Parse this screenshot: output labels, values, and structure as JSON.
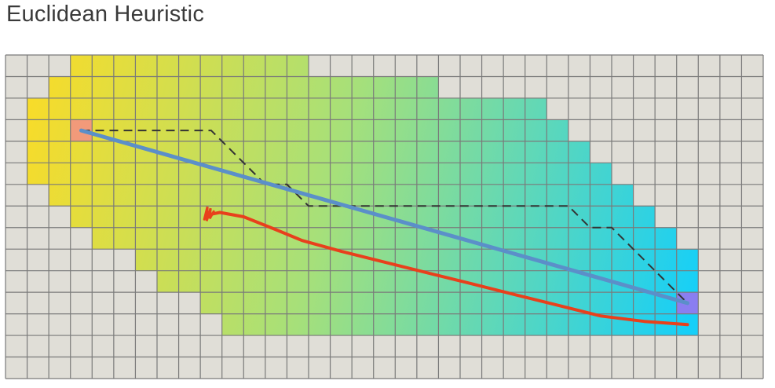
{
  "title": "Euclidean Heuristic",
  "grid": {
    "cols": 35,
    "rows": 15,
    "start": {
      "col": 3,
      "row": 3
    },
    "goal": {
      "col": 31,
      "row": 11
    },
    "explored_rows": [
      {
        "row": 0,
        "from": 3,
        "to": 13
      },
      {
        "row": 1,
        "from": 2,
        "to": 19
      },
      {
        "row": 2,
        "from": 1,
        "to": 24
      },
      {
        "row": 3,
        "from": 1,
        "to": 25
      },
      {
        "row": 4,
        "from": 1,
        "to": 26
      },
      {
        "row": 5,
        "from": 1,
        "to": 27
      },
      {
        "row": 6,
        "from": 2,
        "to": 28
      },
      {
        "row": 7,
        "from": 3,
        "to": 29
      },
      {
        "row": 8,
        "from": 4,
        "to": 30
      },
      {
        "row": 9,
        "from": 6,
        "to": 31
      },
      {
        "row": 10,
        "from": 7,
        "to": 31
      },
      {
        "row": 11,
        "from": 9,
        "to": 31
      },
      {
        "row": 12,
        "from": 10,
        "to": 31
      }
    ]
  },
  "paths": {
    "dashed_path": [
      [
        3,
        3
      ],
      [
        9,
        3
      ],
      [
        11.5,
        5.5
      ],
      [
        12.5,
        5.5
      ],
      [
        13.5,
        6.5
      ],
      [
        25.5,
        6.5
      ],
      [
        26.5,
        7.5
      ],
      [
        27.5,
        7.5
      ],
      [
        31,
        11
      ]
    ],
    "straight_line": [
      [
        3,
        3
      ],
      [
        31,
        11
      ]
    ],
    "red_stroke": [
      [
        8.9,
        6.9
      ],
      [
        9.4,
        6.8
      ],
      [
        10.5,
        7.0
      ],
      [
        12,
        7.6
      ],
      [
        13.2,
        8.1
      ],
      [
        15,
        8.6
      ],
      [
        17,
        9.1
      ],
      [
        19,
        9.6
      ],
      [
        21,
        10.1
      ],
      [
        23,
        10.6
      ],
      [
        25,
        11.1
      ],
      [
        27,
        11.6
      ],
      [
        29,
        11.85
      ],
      [
        31,
        12.0
      ]
    ]
  },
  "colors": {
    "unexplored_cell": "#e0ded7",
    "grid_line": "#7a7a7a",
    "start_cell": "#f29a7a",
    "goal_cell": "#8a7ef0",
    "straight_line": "#5b8fc9",
    "red_stroke": "#e8401c",
    "dashed_path": "#333333",
    "gradient_start": "#f7dc2a",
    "gradient_mid": "#a6e07a",
    "gradient_end": "#16cff8"
  }
}
